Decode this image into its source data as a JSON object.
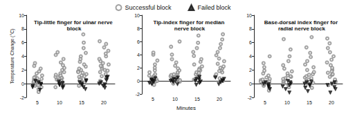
{
  "chart_data": [
    {
      "type": "scatter",
      "title": "Tip-little finger for ulnar nerve block",
      "y_label": "Temperature Change (°C)",
      "categories": [
        "5",
        "10",
        "15",
        "20"
      ],
      "ylim": [
        -2,
        10
      ],
      "yticks": [
        -2,
        0,
        2,
        4,
        6,
        8,
        10
      ],
      "grid": false,
      "legend": "top",
      "series": [
        {
          "name": "Successful block",
          "color": "#8c8c8c",
          "marker": "circle",
          "values": [
            [
              -1.2,
              -0.8,
              -0.5,
              -0.3,
              -0.1,
              0,
              0.1,
              0.2,
              0.3,
              0.4,
              0.5,
              0.6,
              0.7,
              0.8,
              1.0,
              1.2,
              1.5,
              1.8,
              2.2,
              2.6,
              3.0,
              0.3,
              0.9,
              -0.2
            ],
            [
              -0.5,
              -0.2,
              0,
              0.2,
              0.4,
              0.6,
              0.8,
              0.9,
              1.0,
              1.1,
              1.3,
              1.5,
              1.7,
              2.0,
              2.3,
              2.7,
              3.1,
              3.6,
              4.2,
              4.6,
              0.5,
              1.2
            ],
            [
              -0.3,
              0.2,
              0.5,
              0.8,
              1.0,
              1.2,
              1.4,
              1.6,
              1.8,
              2.0,
              2.2,
              2.5,
              2.8,
              3.2,
              3.6,
              4.0,
              4.5,
              5.2,
              6.0,
              7.2,
              1.1,
              1.7,
              0.6
            ],
            [
              0,
              0.4,
              0.8,
              1.1,
              1.4,
              1.7,
              2.0,
              2.2,
              2.5,
              2.8,
              3.0,
              3.3,
              3.6,
              4.0,
              4.4,
              4.8,
              5.3,
              5.8,
              6.2,
              1.9,
              2.6
            ]
          ]
        },
        {
          "name": "Failed block",
          "color": "#111111",
          "marker": "triangle-down",
          "values": [
            [
              -0.9,
              -0.5,
              -0.3,
              -0.1,
              0,
              0.2,
              0.4
            ],
            [
              -0.6,
              -0.4,
              -0.2,
              0,
              0.1,
              0.3
            ],
            [
              -0.8,
              -0.5,
              -0.2,
              0,
              0.2,
              0.4,
              0.5
            ],
            [
              -0.6,
              -0.3,
              -0.1,
              0,
              0.2,
              0.5,
              0.9,
              1.0
            ]
          ]
        }
      ]
    },
    {
      "type": "scatter",
      "title": "Tip-index finger for median nerve block",
      "x_label": "Minutes",
      "categories": [
        "5",
        "10",
        "15",
        "20"
      ],
      "ylim": [
        -2,
        10
      ],
      "yticks": [
        -2,
        0,
        2,
        4,
        6,
        8,
        10
      ],
      "grid": false,
      "legend": "top",
      "series": [
        {
          "name": "Successful block",
          "color": "#8c8c8c",
          "marker": "circle",
          "values": [
            [
              -0.6,
              -0.3,
              -0.1,
              0,
              0.1,
              0.2,
              0.3,
              0.5,
              0.6,
              0.8,
              1.0,
              1.3,
              1.6,
              2.0,
              2.5,
              3.1,
              4.0,
              4.3,
              0.4,
              0.7
            ],
            [
              -0.4,
              -0.1,
              0.1,
              0.3,
              0.5,
              0.7,
              0.9,
              1.1,
              1.3,
              1.6,
              1.9,
              2.3,
              2.8,
              3.3,
              4.0,
              5.2,
              6.0,
              0.6,
              1.0
            ],
            [
              -0.2,
              0.2,
              0.5,
              0.8,
              1.0,
              1.3,
              1.6,
              1.9,
              2.2,
              2.5,
              2.9,
              3.3,
              3.8,
              4.4,
              5.0,
              5.8,
              6.9,
              1.2,
              1.7
            ],
            [
              0,
              0.4,
              0.7,
              1.0,
              1.3,
              1.6,
              1.9,
              2.2,
              2.6,
              3.0,
              3.4,
              3.9,
              4.4,
              5.0,
              5.6,
              6.3,
              7.1,
              1.5,
              2.0
            ]
          ]
        },
        {
          "name": "Failed block",
          "color": "#111111",
          "marker": "triangle-down",
          "values": [
            [
              -0.5,
              -0.3,
              -0.1,
              0,
              0.1,
              0.2,
              0.4
            ],
            [
              -0.5,
              -0.2,
              0,
              0.1,
              0.2,
              0.3,
              0.5
            ],
            [
              -0.6,
              -0.3,
              -0.1,
              0,
              0.2,
              0.3,
              0.6
            ],
            [
              -0.5,
              -0.2,
              0,
              0.1,
              0.3,
              0.5
            ]
          ]
        }
      ]
    },
    {
      "type": "scatter",
      "title": "Base-dorsal index finger for radial nerve block",
      "categories": [
        "5",
        "10",
        "15",
        "20"
      ],
      "ylim": [
        -2,
        10
      ],
      "yticks": [
        -2,
        0,
        2,
        4,
        6,
        8,
        10
      ],
      "grid": false,
      "legend": "top",
      "series": [
        {
          "name": "Successful block",
          "color": "#8c8c8c",
          "marker": "circle",
          "values": [
            [
              -1.0,
              -0.6,
              -0.3,
              -0.1,
              0,
              0.1,
              0.2,
              0.4,
              0.5,
              0.7,
              0.9,
              1.2,
              1.5,
              1.9,
              2.4,
              3.0,
              4.0,
              0.3,
              0.6
            ],
            [
              -0.5,
              -0.2,
              0,
              0.2,
              0.4,
              0.6,
              0.8,
              1.0,
              1.2,
              1.5,
              1.8,
              2.2,
              2.7,
              3.3,
              4.0,
              5.0,
              6.5,
              0.7,
              1.1
            ],
            [
              -0.6,
              -0.2,
              0.1,
              0.4,
              0.6,
              0.9,
              1.1,
              1.4,
              1.7,
              2.0,
              2.4,
              2.8,
              3.3,
              3.9,
              4.5,
              5.3,
              6.8,
              0.8,
              1.3
            ],
            [
              -0.2,
              0.3,
              0.6,
              1.0,
              1.3,
              1.6,
              2.0,
              2.3,
              2.7,
              3.1,
              3.5,
              4.0,
              4.6,
              5.2,
              5.9,
              6.6,
              1.4,
              1.8
            ]
          ]
        },
        {
          "name": "Failed block",
          "color": "#111111",
          "marker": "triangle-down",
          "values": [
            [
              -0.8,
              -0.5,
              -0.3,
              -0.1,
              0,
              0.2
            ],
            [
              -1.3,
              -0.8,
              -0.4,
              -0.2,
              0,
              0.2,
              0.4
            ],
            [
              -1.1,
              -0.6,
              -0.3,
              -0.1,
              0,
              0.2,
              0.3
            ],
            [
              -1.3,
              -0.8,
              -0.5,
              -0.2,
              0,
              0.2
            ]
          ]
        }
      ]
    }
  ]
}
